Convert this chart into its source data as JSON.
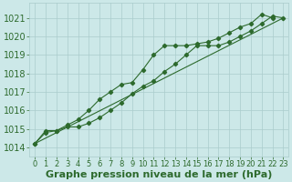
{
  "title": "Graphe pression niveau de la mer (hPa)",
  "xlabel": "Graphe pression niveau de la mer (hPa)",
  "bg_color": "#cce8e8",
  "grid_color": "#aacccc",
  "line_color": "#2d6a2d",
  "ylim": [
    1013.5,
    1021.8
  ],
  "xlim": [
    -0.5,
    23.5
  ],
  "yticks": [
    1014,
    1015,
    1016,
    1017,
    1018,
    1019,
    1020,
    1021
  ],
  "xticks": [
    0,
    1,
    2,
    3,
    4,
    5,
    6,
    7,
    8,
    9,
    10,
    11,
    12,
    13,
    14,
    15,
    16,
    17,
    18,
    19,
    20,
    21,
    22,
    23
  ],
  "series": [
    {
      "x": [
        0,
        1,
        2,
        3,
        4,
        5,
        6,
        7,
        8,
        9,
        10,
        11,
        12,
        13,
        14,
        15,
        16,
        17,
        18,
        19,
        20,
        21,
        22
      ],
      "y": [
        1014.2,
        1014.9,
        1014.9,
        1015.2,
        1015.5,
        1016.0,
        1016.6,
        1017.0,
        1017.4,
        1017.5,
        1018.2,
        1019.0,
        1019.5,
        1019.5,
        1019.5,
        1019.6,
        1019.7,
        1019.9,
        1020.2,
        1020.5,
        1020.7,
        1021.2,
        1021.0
      ]
    },
    {
      "x": [
        0,
        1,
        2,
        3,
        4,
        5,
        6,
        7,
        8,
        9,
        10,
        11,
        12,
        13,
        14,
        15,
        16,
        17,
        18,
        19,
        20,
        21,
        22,
        23
      ],
      "y": [
        1014.2,
        1014.8,
        1014.9,
        1015.1,
        1015.1,
        1015.3,
        1015.6,
        1016.0,
        1016.4,
        1016.9,
        1017.3,
        1017.6,
        1018.1,
        1018.5,
        1019.0,
        1019.5,
        1019.5,
        1019.5,
        1019.7,
        1020.0,
        1020.3,
        1020.7,
        1021.1,
        1021.0
      ]
    },
    {
      "x": [
        0,
        23
      ],
      "y": [
        1014.2,
        1021.0
      ]
    }
  ],
  "has_markers": [
    true,
    true,
    false
  ],
  "title_fontsize": 9,
  "tick_fontsize": 7,
  "tick_color": "#2d6a2d",
  "label_fontsize": 8
}
